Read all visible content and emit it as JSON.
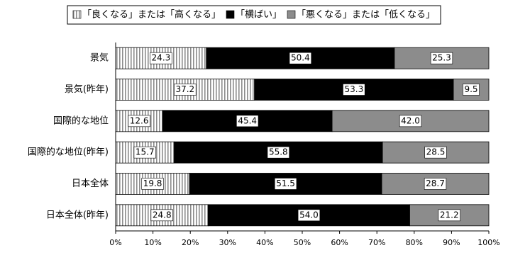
{
  "chart_data": {
    "type": "stacked-bar-horizontal",
    "categories": [
      "景気",
      "景気(昨年)",
      "国際的な地位",
      "国際的な地位(昨年)",
      "日本全体",
      "日本全体(昨年)"
    ],
    "series": [
      {
        "name": "「良くなる」または「高くなる」",
        "color": "#8c8c8c",
        "pattern": "vertical-stripes",
        "values": [
          24.3,
          37.2,
          12.6,
          15.7,
          19.8,
          24.8
        ],
        "value_labels": [
          "24.3",
          "37.2",
          "12.6",
          "15.7",
          "19.8",
          "24.8"
        ]
      },
      {
        "name": "「横ばい」",
        "color": "#000000",
        "values": [
          50.4,
          53.3,
          45.4,
          55.8,
          51.5,
          54.0
        ],
        "value_labels": [
          "50.4",
          "53.3",
          "45.4",
          "55.8",
          "51.5",
          "54.0"
        ]
      },
      {
        "name": "「悪くなる」または「低くなる」",
        "color": "#8c8c8c",
        "values": [
          25.3,
          9.5,
          42.0,
          28.5,
          28.7,
          21.2
        ],
        "value_labels": [
          "25.3",
          "9.5",
          "42.0",
          "28.5",
          "28.7",
          "21.2"
        ]
      }
    ],
    "xlim": [
      0,
      100
    ],
    "xticks": [
      {
        "value": 0,
        "label": "0%"
      },
      {
        "value": 10,
        "label": "10%"
      },
      {
        "value": 20,
        "label": "20%"
      },
      {
        "value": 30,
        "label": "30%"
      },
      {
        "value": 40,
        "label": "40%"
      },
      {
        "value": 50,
        "label": "50%"
      },
      {
        "value": 60,
        "label": "60%"
      },
      {
        "value": 70,
        "label": "70%"
      },
      {
        "value": 80,
        "label": "80%"
      },
      {
        "value": 90,
        "label": "90%"
      },
      {
        "value": 100,
        "label": "100%"
      }
    ],
    "grid": false,
    "legend": "top"
  }
}
